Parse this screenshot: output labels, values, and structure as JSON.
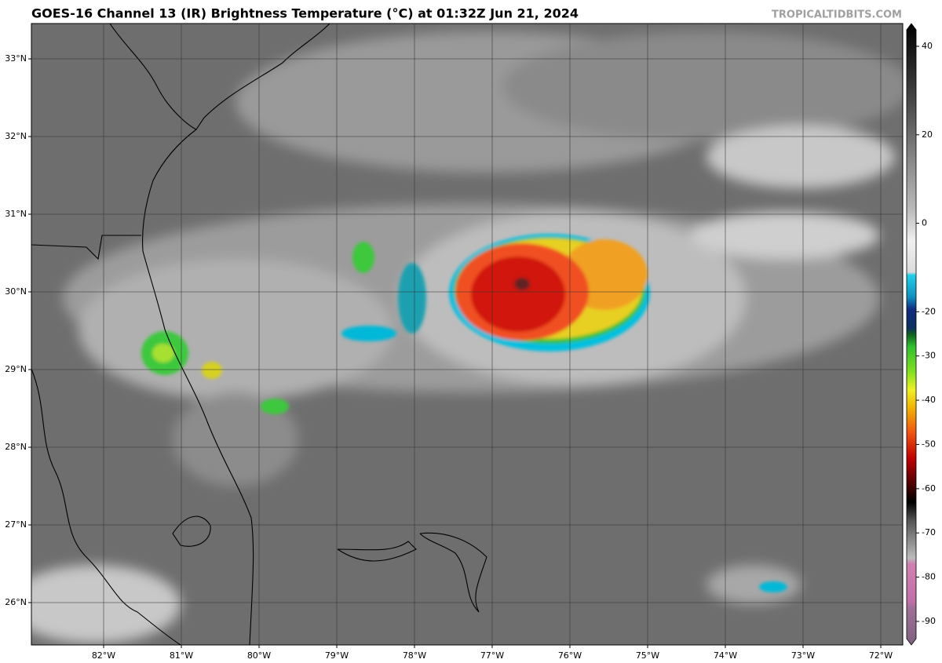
{
  "header": {
    "title": "GOES-16 Channel 13 (IR) Brightness Temperature (°C) at 01:32Z Jun 21, 2024",
    "credit": "TROPICALTIDBITS.COM"
  },
  "map": {
    "lat_labels": [
      "33°N",
      "32°N",
      "31°N",
      "30°N",
      "29°N",
      "28°N",
      "27°N",
      "26°N"
    ],
    "lon_labels": [
      "82°W",
      "81°W",
      "80°W",
      "79°W",
      "78°W",
      "77°W",
      "76°W",
      "75°W",
      "74°W",
      "73°W",
      "72°W"
    ]
  },
  "colorbar": {
    "ticks": [
      40,
      20,
      0,
      -20,
      -30,
      -40,
      -50,
      -60,
      -70,
      -80,
      -90
    ]
  }
}
